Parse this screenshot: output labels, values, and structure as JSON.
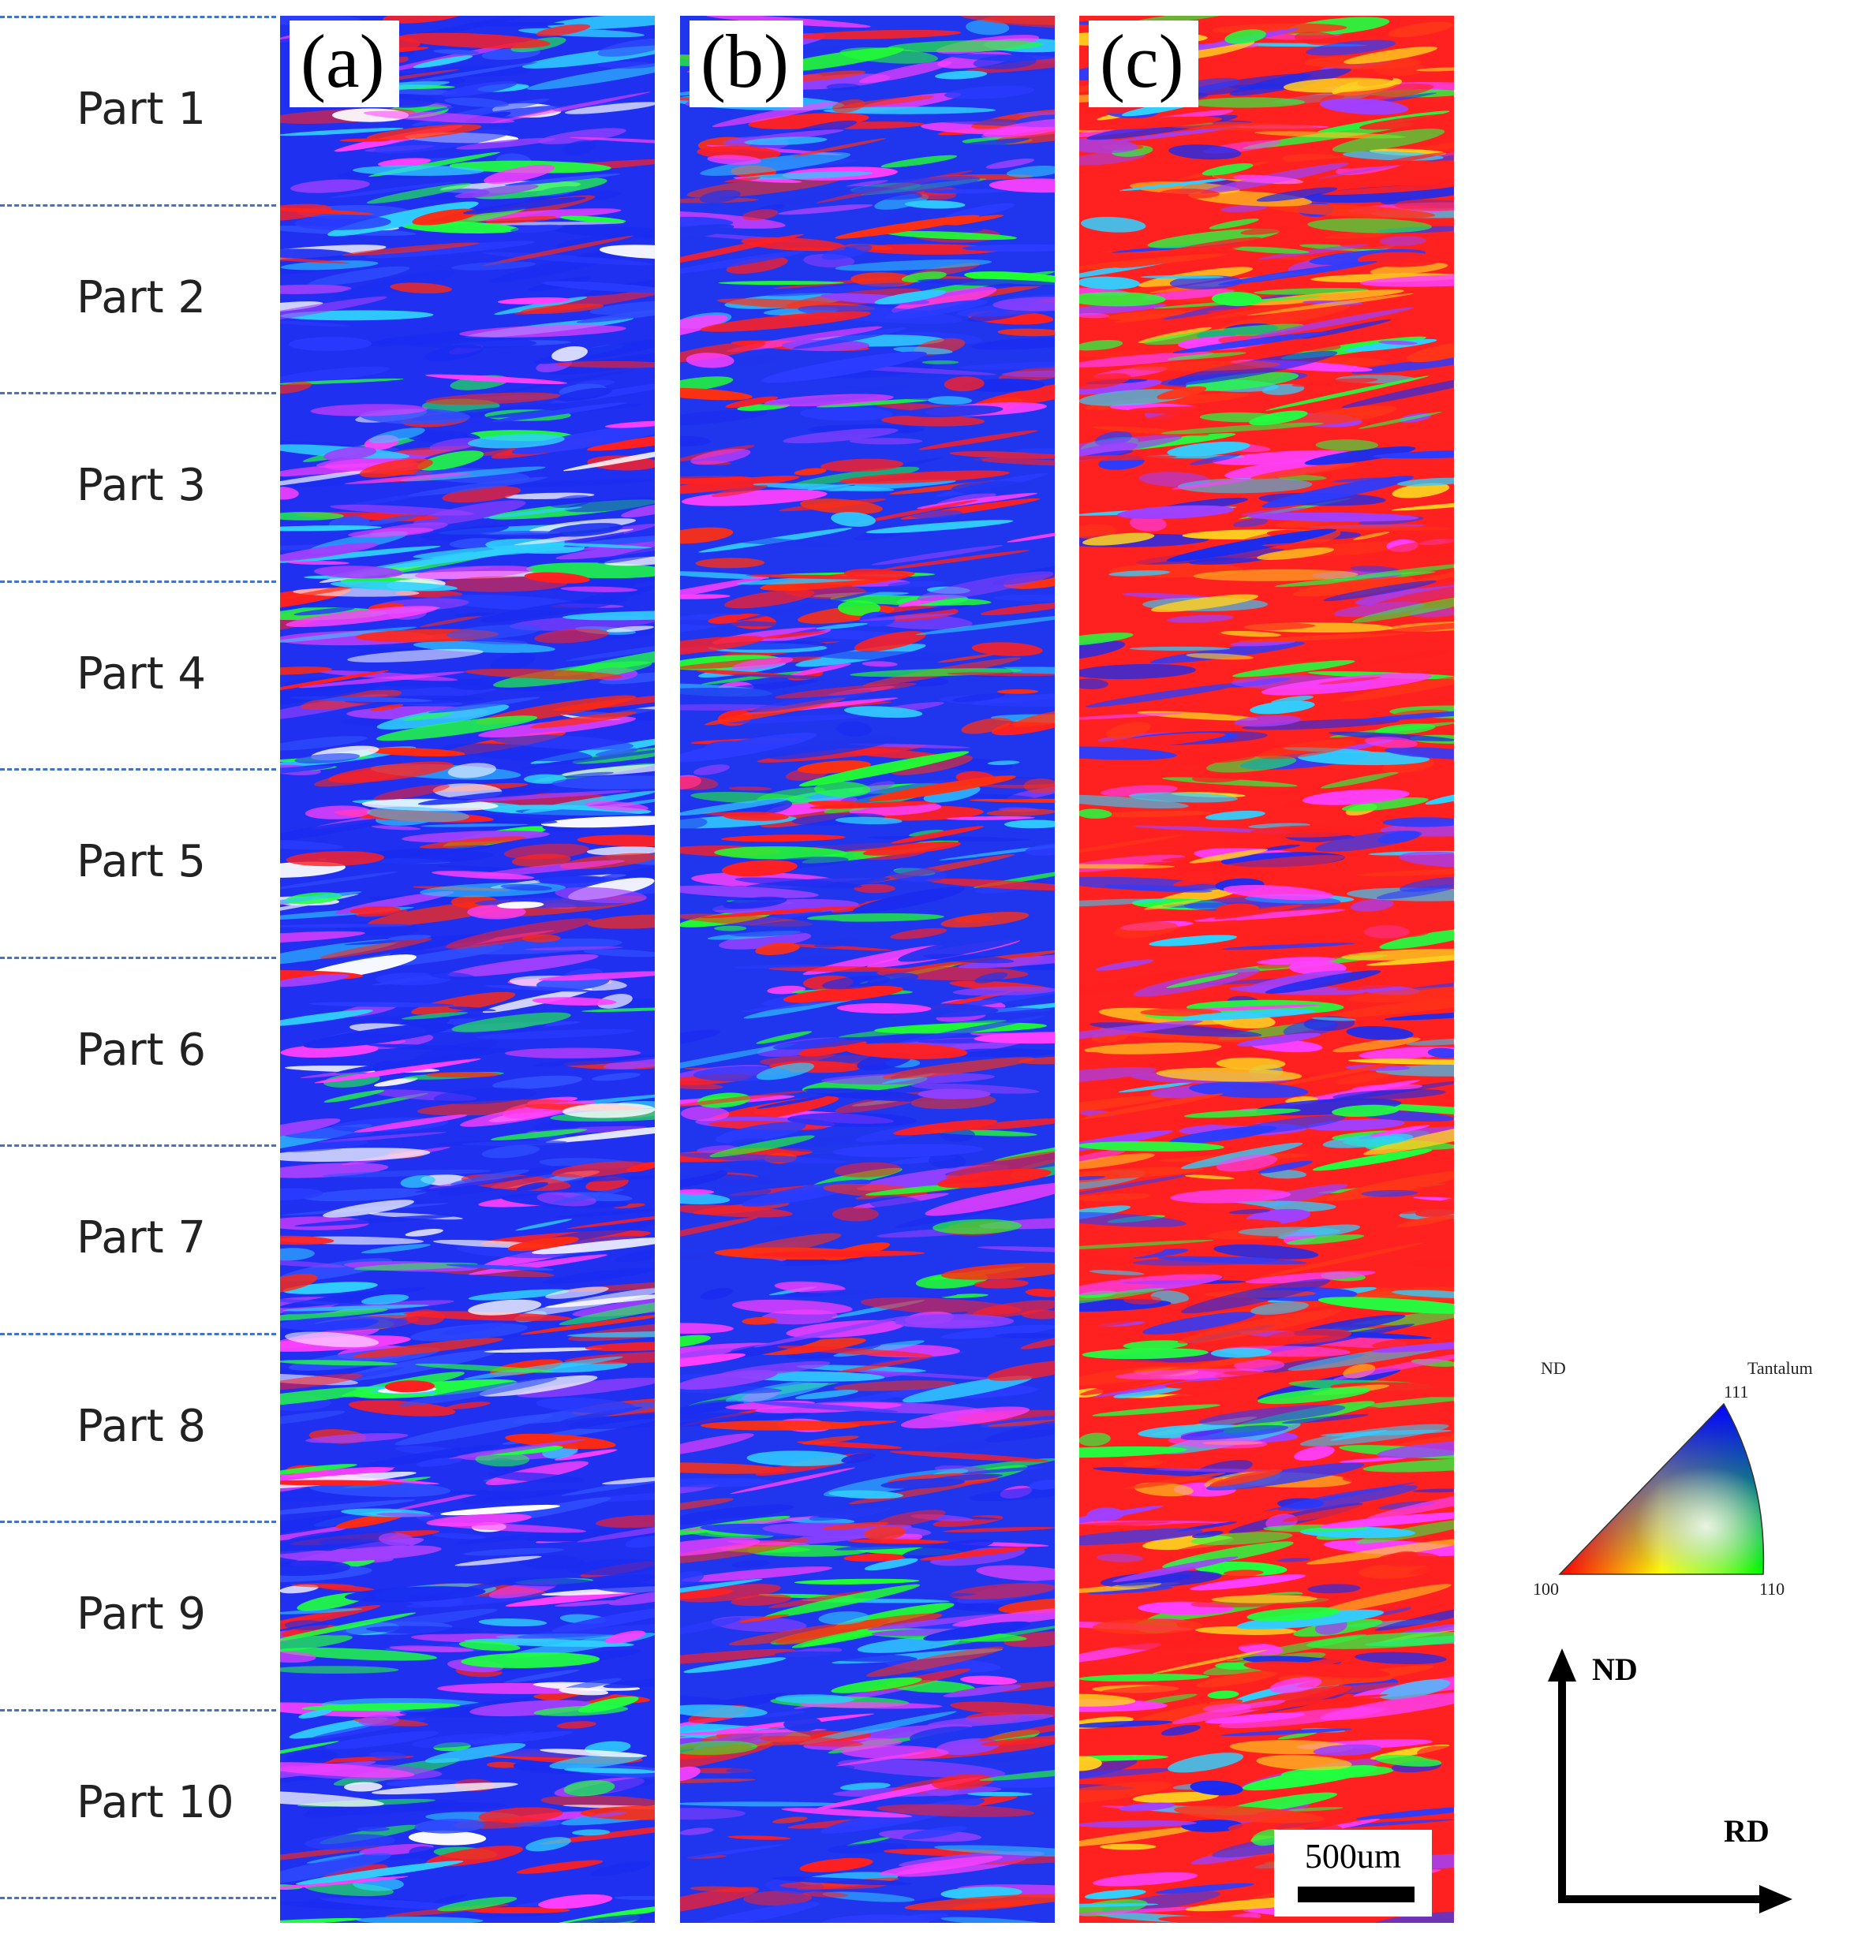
{
  "parts": [
    "Part 1",
    "Part 2",
    "Part 3",
    "Part 4",
    "Part 5",
    "Part 6",
    "Part 7",
    "Part 8",
    "Part 9",
    "Part 10"
  ],
  "panels": [
    {
      "letter": "(a)",
      "dominant": "#2030F0"
    },
    {
      "letter": "(b)",
      "dominant": "#2035EE"
    },
    {
      "letter": "(c)",
      "dominant": "#FF2020"
    }
  ],
  "scale_bar": {
    "label": "500um"
  },
  "legend": {
    "nd": "ND",
    "material": "Tantalum",
    "corner_100": "100",
    "corner_110": "110",
    "corner_111": "111",
    "colors": {
      "100": "#FF0000",
      "110": "#00FF00",
      "111": "#0000FF"
    }
  },
  "axes": {
    "vertical": "ND",
    "horizontal": "RD"
  },
  "colors": {
    "separator": "#4472C4"
  }
}
